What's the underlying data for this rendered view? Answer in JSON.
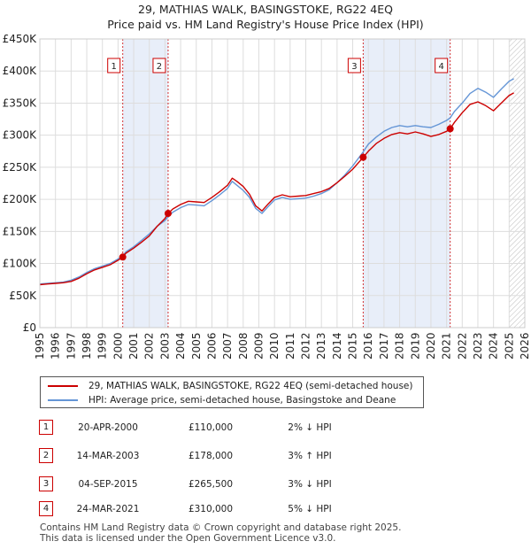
{
  "title_line1": "29, MATHIAS WALK, BASINGSTOKE, RG22 4EQ",
  "title_line2": "Price paid vs. HM Land Registry's House Price Index (HPI)",
  "chart_data": {
    "type": "line",
    "title": "29, MATHIAS WALK, BASINGSTOKE, RG22 4EQ — Price paid vs. HM Land Registry's House Price Index (HPI)",
    "xlim": [
      1995,
      2026
    ],
    "ylim": [
      0,
      450000
    ],
    "y_ticks": [
      0,
      50000,
      100000,
      150000,
      200000,
      250000,
      300000,
      350000,
      400000,
      450000
    ],
    "y_tick_labels": [
      "£0",
      "£50K",
      "£100K",
      "£150K",
      "£200K",
      "£250K",
      "£300K",
      "£350K",
      "£400K",
      "£450K"
    ],
    "x_ticks": [
      1995,
      1996,
      1997,
      1998,
      1999,
      2000,
      2001,
      2002,
      2003,
      2004,
      2005,
      2006,
      2007,
      2008,
      2009,
      2010,
      2011,
      2012,
      2013,
      2014,
      2015,
      2016,
      2017,
      2018,
      2019,
      2020,
      2021,
      2022,
      2023,
      2024,
      2025,
      2026
    ],
    "x_tick_labels": [
      "1995",
      "1996",
      "1997",
      "1998",
      "1999",
      "2000",
      "2001",
      "2002",
      "2003",
      "2004",
      "2005",
      "2006",
      "2007",
      "2008",
      "2009",
      "2010",
      "2011",
      "2012",
      "2013",
      "2014",
      "2015",
      "2016",
      "2017",
      "2018",
      "2019",
      "2020",
      "2021",
      "2022",
      "2023",
      "2024",
      "2025",
      "2026"
    ],
    "grid": true,
    "forecast_start": 2025.0,
    "shaded_periods": [
      [
        2000.3,
        2003.2
      ],
      [
        2015.67,
        2021.23
      ]
    ],
    "series": [
      {
        "name": "29, MATHIAS WALK, BASINGSTOKE, RG22 4EQ (semi-detached house)",
        "color": "#cc0000",
        "x": [
          1995.0,
          1995.5,
          1996.0,
          1996.5,
          1997.0,
          1997.5,
          1998.0,
          1998.5,
          1999.0,
          1999.5,
          2000.0,
          2000.3,
          2000.5,
          2001.0,
          2001.5,
          2002.0,
          2002.5,
          2003.0,
          2003.2,
          2003.5,
          2004.0,
          2004.5,
          2005.0,
          2005.5,
          2006.0,
          2006.5,
          2007.0,
          2007.3,
          2007.6,
          2008.0,
          2008.4,
          2008.8,
          2009.2,
          2009.6,
          2010.0,
          2010.5,
          2011.0,
          2011.5,
          2012.0,
          2012.5,
          2013.0,
          2013.5,
          2014.0,
          2014.5,
          2015.0,
          2015.67,
          2016.0,
          2016.5,
          2017.0,
          2017.5,
          2018.0,
          2018.5,
          2019.0,
          2019.5,
          2020.0,
          2020.5,
          2021.0,
          2021.23,
          2021.5,
          2022.0,
          2022.5,
          2023.0,
          2023.5,
          2024.0,
          2024.5,
          2025.0,
          2025.3
        ],
        "y": [
          67000,
          68000,
          69000,
          70000,
          72000,
          77000,
          84000,
          90000,
          94000,
          98000,
          105000,
          110000,
          116000,
          124000,
          133000,
          143000,
          158000,
          170000,
          178000,
          185000,
          192000,
          197000,
          196000,
          195000,
          203000,
          212000,
          222000,
          233000,
          228000,
          220000,
          208000,
          190000,
          182000,
          193000,
          203000,
          207000,
          204000,
          205000,
          206000,
          209000,
          212000,
          217000,
          226000,
          236000,
          247000,
          265500,
          275000,
          287000,
          295000,
          301000,
          304000,
          302000,
          305000,
          302000,
          298000,
          301000,
          306000,
          310000,
          320000,
          335000,
          348000,
          352000,
          346000,
          338000,
          350000,
          362000,
          366000
        ]
      },
      {
        "name": "HPI: Average price, semi-detached house, Basingstoke and Deane",
        "color": "#6495d6",
        "x": [
          1995.0,
          1995.5,
          1996.0,
          1996.5,
          1997.0,
          1997.5,
          1998.0,
          1998.5,
          1999.0,
          1999.5,
          2000.0,
          2000.3,
          2000.5,
          2001.0,
          2001.5,
          2002.0,
          2002.5,
          2003.0,
          2003.2,
          2003.5,
          2004.0,
          2004.5,
          2005.0,
          2005.5,
          2006.0,
          2006.5,
          2007.0,
          2007.3,
          2007.6,
          2008.0,
          2008.4,
          2008.8,
          2009.2,
          2009.6,
          2010.0,
          2010.5,
          2011.0,
          2011.5,
          2012.0,
          2012.5,
          2013.0,
          2013.5,
          2014.0,
          2014.5,
          2015.0,
          2015.67,
          2016.0,
          2016.5,
          2017.0,
          2017.5,
          2018.0,
          2018.5,
          2019.0,
          2019.5,
          2020.0,
          2020.5,
          2021.0,
          2021.23,
          2021.5,
          2022.0,
          2022.5,
          2023.0,
          2023.5,
          2024.0,
          2024.5,
          2025.0,
          2025.3
        ],
        "y": [
          68000,
          69000,
          70000,
          71000,
          74000,
          79000,
          86000,
          92000,
          96000,
          100000,
          107000,
          112000,
          118000,
          126000,
          136000,
          146000,
          158000,
          167000,
          173000,
          180000,
          187000,
          192000,
          191000,
          190000,
          198000,
          207000,
          217000,
          228000,
          222000,
          214000,
          203000,
          186000,
          178000,
          189000,
          199000,
          203000,
          200000,
          201000,
          202000,
          205000,
          209000,
          215000,
          226000,
          238000,
          252000,
          274000,
          286000,
          297000,
          306000,
          312000,
          315000,
          313000,
          315000,
          313000,
          312000,
          317000,
          323000,
          327000,
          337000,
          350000,
          365000,
          373000,
          367000,
          359000,
          372000,
          384000,
          388000
        ]
      }
    ],
    "annotations": [
      {
        "label": "1",
        "x": 2000.3,
        "y": 110000
      },
      {
        "label": "2",
        "x": 2003.2,
        "y": 178000
      },
      {
        "label": "3",
        "x": 2015.67,
        "y": 265500
      },
      {
        "label": "4",
        "x": 2021.23,
        "y": 310000
      }
    ]
  },
  "legend": {
    "property_label": "29, MATHIAS WALK, BASINGSTOKE, RG22 4EQ (semi-detached house)",
    "hpi_label": "HPI: Average price, semi-detached house, Basingstoke and Deane"
  },
  "colors": {
    "property": "#cc0000",
    "hpi": "#6495d6",
    "shade": "#e8eef9",
    "grid": "#dddddd"
  },
  "transactions": [
    {
      "num": "1",
      "date": "20-APR-2000",
      "price": "£110,000",
      "hpi": "2% ↓ HPI"
    },
    {
      "num": "2",
      "date": "14-MAR-2003",
      "price": "£178,000",
      "hpi": "3% ↑ HPI"
    },
    {
      "num": "3",
      "date": "04-SEP-2015",
      "price": "£265,500",
      "hpi": "3% ↓ HPI"
    },
    {
      "num": "4",
      "date": "24-MAR-2021",
      "price": "£310,000",
      "hpi": "5% ↓ HPI"
    }
  ],
  "footer": {
    "line1": "Contains HM Land Registry data © Crown copyright and database right 2025.",
    "line2": "This data is licensed under the Open Government Licence v3.0."
  }
}
